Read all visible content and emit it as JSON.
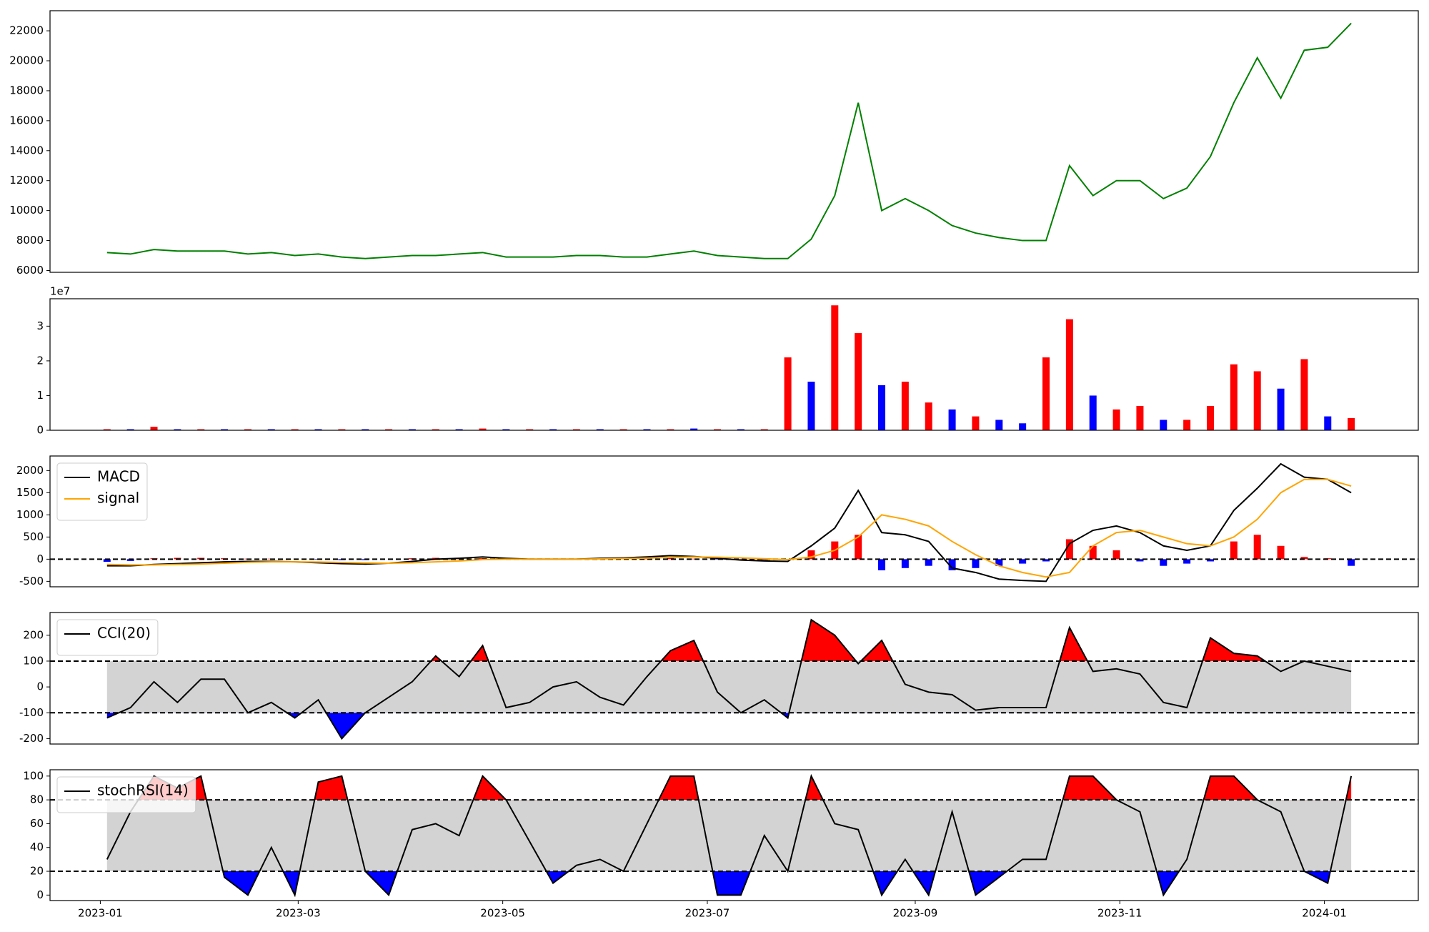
{
  "chart_data": [
    {
      "type": "line",
      "x": [
        "2023-01-03",
        "2023-01-10",
        "2023-01-17",
        "2023-01-24",
        "2023-01-31",
        "2023-02-07",
        "2023-02-14",
        "2023-02-21",
        "2023-02-28",
        "2023-03-07",
        "2023-03-14",
        "2023-03-21",
        "2023-03-28",
        "2023-04-04",
        "2023-04-11",
        "2023-04-18",
        "2023-04-25",
        "2023-05-02",
        "2023-05-09",
        "2023-05-16",
        "2023-05-23",
        "2023-05-30",
        "2023-06-06",
        "2023-06-13",
        "2023-06-20",
        "2023-06-27",
        "2023-07-04",
        "2023-07-11",
        "2023-07-18",
        "2023-07-25",
        "2023-08-01",
        "2023-08-08",
        "2023-08-15",
        "2023-08-22",
        "2023-08-29",
        "2023-09-05",
        "2023-09-12",
        "2023-09-19",
        "2023-09-26",
        "2023-10-03",
        "2023-10-10",
        "2023-10-17",
        "2023-10-24",
        "2023-10-31",
        "2023-11-07",
        "2023-11-14",
        "2023-11-21",
        "2023-11-28",
        "2023-12-05",
        "2023-12-12",
        "2023-12-19",
        "2023-12-26",
        "2024-01-02",
        "2024-01-09"
      ],
      "xlim": [
        "2022-12-17",
        "2024-01-29"
      ],
      "ylim": [
        5880,
        23340
      ],
      "yticks": [
        6000,
        8000,
        10000,
        12000,
        14000,
        16000,
        18000,
        20000,
        22000
      ],
      "series": [
        {
          "color": "green",
          "values": [
            7200,
            7100,
            7400,
            7300,
            7300,
            7300,
            7100,
            7200,
            7000,
            7100,
            6900,
            6800,
            6900,
            7000,
            7000,
            7100,
            7200,
            6900,
            6900,
            6900,
            7000,
            7000,
            6900,
            6900,
            7100,
            7300,
            7000,
            6900,
            6800,
            6800,
            8100,
            11000,
            17200,
            10000,
            10800,
            10000,
            9000,
            8500,
            8200,
            8000,
            8000,
            13000,
            11000,
            12000,
            12000,
            10800,
            11500,
            13600,
            17200,
            20200,
            17500,
            20700,
            20900,
            22500
          ]
        }
      ]
    },
    {
      "type": "bar",
      "x": [
        "2023-01-03",
        "2023-01-10",
        "2023-01-17",
        "2023-01-24",
        "2023-01-31",
        "2023-02-07",
        "2023-02-14",
        "2023-02-21",
        "2023-02-28",
        "2023-03-07",
        "2023-03-14",
        "2023-03-21",
        "2023-03-28",
        "2023-04-04",
        "2023-04-11",
        "2023-04-18",
        "2023-04-25",
        "2023-05-02",
        "2023-05-09",
        "2023-05-16",
        "2023-05-23",
        "2023-05-30",
        "2023-06-06",
        "2023-06-13",
        "2023-06-20",
        "2023-06-27",
        "2023-07-04",
        "2023-07-11",
        "2023-07-18",
        "2023-07-25",
        "2023-08-01",
        "2023-08-08",
        "2023-08-15",
        "2023-08-22",
        "2023-08-29",
        "2023-09-05",
        "2023-09-12",
        "2023-09-19",
        "2023-09-26",
        "2023-10-03",
        "2023-10-10",
        "2023-10-17",
        "2023-10-24",
        "2023-10-31",
        "2023-11-07",
        "2023-11-14",
        "2023-11-21",
        "2023-11-28",
        "2023-12-05",
        "2023-12-12",
        "2023-12-19",
        "2023-12-26",
        "2024-01-02",
        "2024-01-09"
      ],
      "xlim": [
        "2022-12-17",
        "2024-01-29"
      ],
      "ylim": [
        0,
        3.79
      ],
      "yticks": [
        0,
        1,
        2,
        3
      ],
      "offset_label": "1e7",
      "values": [
        0.03,
        0.03,
        0.1,
        0.03,
        0.03,
        0.03,
        0.03,
        0.03,
        0.03,
        0.03,
        0.03,
        0.03,
        0.03,
        0.03,
        0.03,
        0.03,
        0.05,
        0.03,
        0.03,
        0.03,
        0.03,
        0.03,
        0.03,
        0.03,
        0.03,
        0.05,
        0.03,
        0.03,
        0.03,
        2.1,
        1.4,
        3.6,
        2.8,
        1.3,
        1.4,
        0.8,
        0.6,
        0.4,
        0.3,
        0.2,
        2.1,
        3.2,
        1.0,
        0.6,
        0.7,
        0.3,
        0.3,
        0.7,
        1.9,
        1.7,
        1.2,
        2.05,
        0.4,
        0.35
      ],
      "colors": [
        "red",
        "blue",
        "red",
        "blue",
        "red",
        "blue",
        "red",
        "blue",
        "red",
        "blue",
        "red",
        "blue",
        "red",
        "blue",
        "red",
        "blue",
        "red",
        "blue",
        "red",
        "blue",
        "red",
        "blue",
        "red",
        "blue",
        "red",
        "blue",
        "red",
        "blue",
        "red",
        "red",
        "blue",
        "red",
        "red",
        "blue",
        "red",
        "red",
        "blue",
        "red",
        "blue",
        "blue",
        "red",
        "red",
        "blue",
        "red",
        "red",
        "blue",
        "red",
        "red",
        "red",
        "red",
        "blue",
        "red",
        "blue",
        "red"
      ]
    },
    {
      "type": "line",
      "x": [
        "2023-01-03",
        "2023-01-10",
        "2023-01-17",
        "2023-01-24",
        "2023-01-31",
        "2023-02-07",
        "2023-02-14",
        "2023-02-21",
        "2023-02-28",
        "2023-03-07",
        "2023-03-14",
        "2023-03-21",
        "2023-03-28",
        "2023-04-04",
        "2023-04-11",
        "2023-04-18",
        "2023-04-25",
        "2023-05-02",
        "2023-05-09",
        "2023-05-16",
        "2023-05-23",
        "2023-05-30",
        "2023-06-06",
        "2023-06-13",
        "2023-06-20",
        "2023-06-27",
        "2023-07-04",
        "2023-07-11",
        "2023-07-18",
        "2023-07-25",
        "2023-08-01",
        "2023-08-08",
        "2023-08-15",
        "2023-08-22",
        "2023-08-29",
        "2023-09-05",
        "2023-09-12",
        "2023-09-19",
        "2023-09-26",
        "2023-10-03",
        "2023-10-10",
        "2023-10-17",
        "2023-10-24",
        "2023-10-31",
        "2023-11-07",
        "2023-11-14",
        "2023-11-21",
        "2023-11-28",
        "2023-12-05",
        "2023-12-12",
        "2023-12-19",
        "2023-12-26",
        "2024-01-02",
        "2024-01-09"
      ],
      "xlim": [
        "2022-12-17",
        "2024-01-29"
      ],
      "ylim": [
        -623,
        2328
      ],
      "yticks": [
        -500,
        0,
        500,
        1000,
        1500,
        2000
      ],
      "legend": "upper left",
      "hlines": [
        0
      ],
      "series": [
        {
          "name": "MACD",
          "color": "black",
          "values": [
            -150,
            -150,
            -120,
            -100,
            -80,
            -60,
            -50,
            -50,
            -60,
            -80,
            -100,
            -110,
            -90,
            -50,
            0,
            20,
            50,
            20,
            0,
            0,
            0,
            20,
            30,
            50,
            80,
            60,
            20,
            -20,
            -40,
            -50,
            300,
            700,
            1550,
            600,
            550,
            400,
            -200,
            -300,
            -450,
            -480,
            -500,
            350,
            650,
            750,
            600,
            300,
            200,
            300,
            1100,
            1600,
            2150,
            1850,
            1800,
            1500
          ]
        },
        {
          "name": "signal",
          "color": "orange",
          "values": [
            -120,
            -130,
            -130,
            -120,
            -110,
            -90,
            -70,
            -60,
            -60,
            -65,
            -75,
            -85,
            -90,
            -80,
            -60,
            -40,
            -10,
            0,
            0,
            0,
            0,
            5,
            15,
            25,
            40,
            50,
            45,
            30,
            10,
            -10,
            50,
            200,
            500,
            1000,
            900,
            750,
            400,
            100,
            -150,
            -300,
            -400,
            -300,
            300,
            600,
            650,
            500,
            350,
            300,
            500,
            900,
            1500,
            1800,
            1800,
            1650
          ]
        }
      ],
      "histogram": {
        "up_color": "red",
        "down_color": "blue",
        "values": [
          -60,
          -40,
          20,
          30,
          30,
          20,
          10,
          10,
          0,
          -10,
          -20,
          -20,
          0,
          20,
          30,
          30,
          20,
          10,
          0,
          0,
          0,
          10,
          10,
          20,
          30,
          10,
          -10,
          -20,
          -20,
          -10,
          200,
          400,
          550,
          -250,
          -200,
          -150,
          -250,
          -200,
          -150,
          -100,
          -50,
          450,
          300,
          200,
          -50,
          -150,
          -100,
          -50,
          400,
          550,
          300,
          50,
          20,
          -150
        ]
      }
    },
    {
      "type": "line",
      "x": [
        "2023-01-03",
        "2023-01-10",
        "2023-01-17",
        "2023-01-24",
        "2023-01-31",
        "2023-02-07",
        "2023-02-14",
        "2023-02-21",
        "2023-02-28",
        "2023-03-07",
        "2023-03-14",
        "2023-03-21",
        "2023-03-28",
        "2023-04-04",
        "2023-04-11",
        "2023-04-18",
        "2023-04-25",
        "2023-05-02",
        "2023-05-09",
        "2023-05-16",
        "2023-05-23",
        "2023-05-30",
        "2023-06-06",
        "2023-06-13",
        "2023-06-20",
        "2023-06-27",
        "2023-07-04",
        "2023-07-11",
        "2023-07-18",
        "2023-07-25",
        "2023-08-01",
        "2023-08-08",
        "2023-08-15",
        "2023-08-22",
        "2023-08-29",
        "2023-09-05",
        "2023-09-12",
        "2023-09-19",
        "2023-09-26",
        "2023-10-03",
        "2023-10-10",
        "2023-10-17",
        "2023-10-24",
        "2023-10-31",
        "2023-11-07",
        "2023-11-14",
        "2023-11-21",
        "2023-11-28",
        "2023-12-05",
        "2023-12-12",
        "2023-12-19",
        "2023-12-26",
        "2024-01-02",
        "2024-01-09"
      ],
      "xlim": [
        "2022-12-17",
        "2024-01-29"
      ],
      "ylim": [
        -221,
        288
      ],
      "yticks": [
        -200,
        -100,
        0,
        100,
        200
      ],
      "legend": "upper left",
      "hlines": [
        -100,
        100
      ],
      "band": {
        "range": [
          -100,
          100
        ],
        "color": "lightgray",
        "above_color": "red",
        "below_color": "blue"
      },
      "series": [
        {
          "name": "CCI(20)",
          "color": "black",
          "values": [
            -120,
            -80,
            20,
            -60,
            30,
            30,
            -100,
            -60,
            -120,
            -50,
            -200,
            -100,
            -40,
            20,
            120,
            40,
            160,
            -80,
            -60,
            0,
            20,
            -40,
            -70,
            40,
            140,
            180,
            -20,
            -100,
            -50,
            -120,
            260,
            200,
            90,
            180,
            10,
            -20,
            -30,
            -90,
            -80,
            -80,
            -80,
            230,
            60,
            70,
            50,
            -60,
            -80,
            190,
            130,
            120,
            60,
            100,
            80,
            60
          ]
        }
      ]
    },
    {
      "type": "line",
      "x": [
        "2023-01-03",
        "2023-01-10",
        "2023-01-17",
        "2023-01-24",
        "2023-01-31",
        "2023-02-07",
        "2023-02-14",
        "2023-02-21",
        "2023-02-28",
        "2023-03-07",
        "2023-03-14",
        "2023-03-21",
        "2023-03-28",
        "2023-04-04",
        "2023-04-11",
        "2023-04-18",
        "2023-04-25",
        "2023-05-02",
        "2023-05-09",
        "2023-05-16",
        "2023-05-23",
        "2023-05-30",
        "2023-06-06",
        "2023-06-13",
        "2023-06-20",
        "2023-06-27",
        "2023-07-04",
        "2023-07-11",
        "2023-07-18",
        "2023-07-25",
        "2023-08-01",
        "2023-08-08",
        "2023-08-15",
        "2023-08-22",
        "2023-08-29",
        "2023-09-05",
        "2023-09-12",
        "2023-09-19",
        "2023-09-26",
        "2023-10-03",
        "2023-10-10",
        "2023-10-17",
        "2023-10-24",
        "2023-10-31",
        "2023-11-07",
        "2023-11-14",
        "2023-11-21",
        "2023-11-28",
        "2023-12-05",
        "2023-12-12",
        "2023-12-19",
        "2023-12-26",
        "2024-01-02",
        "2024-01-09"
      ],
      "xlim": [
        "2022-12-17",
        "2024-01-29"
      ],
      "xticks": [
        {
          "value": "2023-01-01",
          "label": "2023-01"
        },
        {
          "value": "2023-03-01",
          "label": "2023-03"
        },
        {
          "value": "2023-05-01",
          "label": "2023-05"
        },
        {
          "value": "2023-07-01",
          "label": "2023-07"
        },
        {
          "value": "2023-09-01",
          "label": "2023-09"
        },
        {
          "value": "2023-11-01",
          "label": "2023-11"
        },
        {
          "value": "2024-01-01",
          "label": "2024-01"
        }
      ],
      "ylim": [
        -4.6,
        105.3
      ],
      "yticks": [
        0,
        20,
        40,
        60,
        80,
        100
      ],
      "legend": "upper left",
      "hlines": [
        20,
        80
      ],
      "band": {
        "range": [
          20,
          80
        ],
        "color": "lightgray",
        "above_color": "red",
        "below_color": "blue"
      },
      "series": [
        {
          "name": "stochRSI(14)",
          "color": "black",
          "values": [
            30,
            70,
            100,
            90,
            100,
            15,
            0,
            40,
            0,
            95,
            100,
            20,
            0,
            55,
            60,
            50,
            100,
            80,
            45,
            10,
            25,
            30,
            20,
            60,
            100,
            100,
            0,
            0,
            50,
            20,
            100,
            60,
            55,
            0,
            30,
            0,
            70,
            0,
            15,
            30,
            30,
            100,
            100,
            80,
            70,
            0,
            30,
            100,
            100,
            80,
            70,
            20,
            10,
            100
          ]
        }
      ]
    }
  ]
}
